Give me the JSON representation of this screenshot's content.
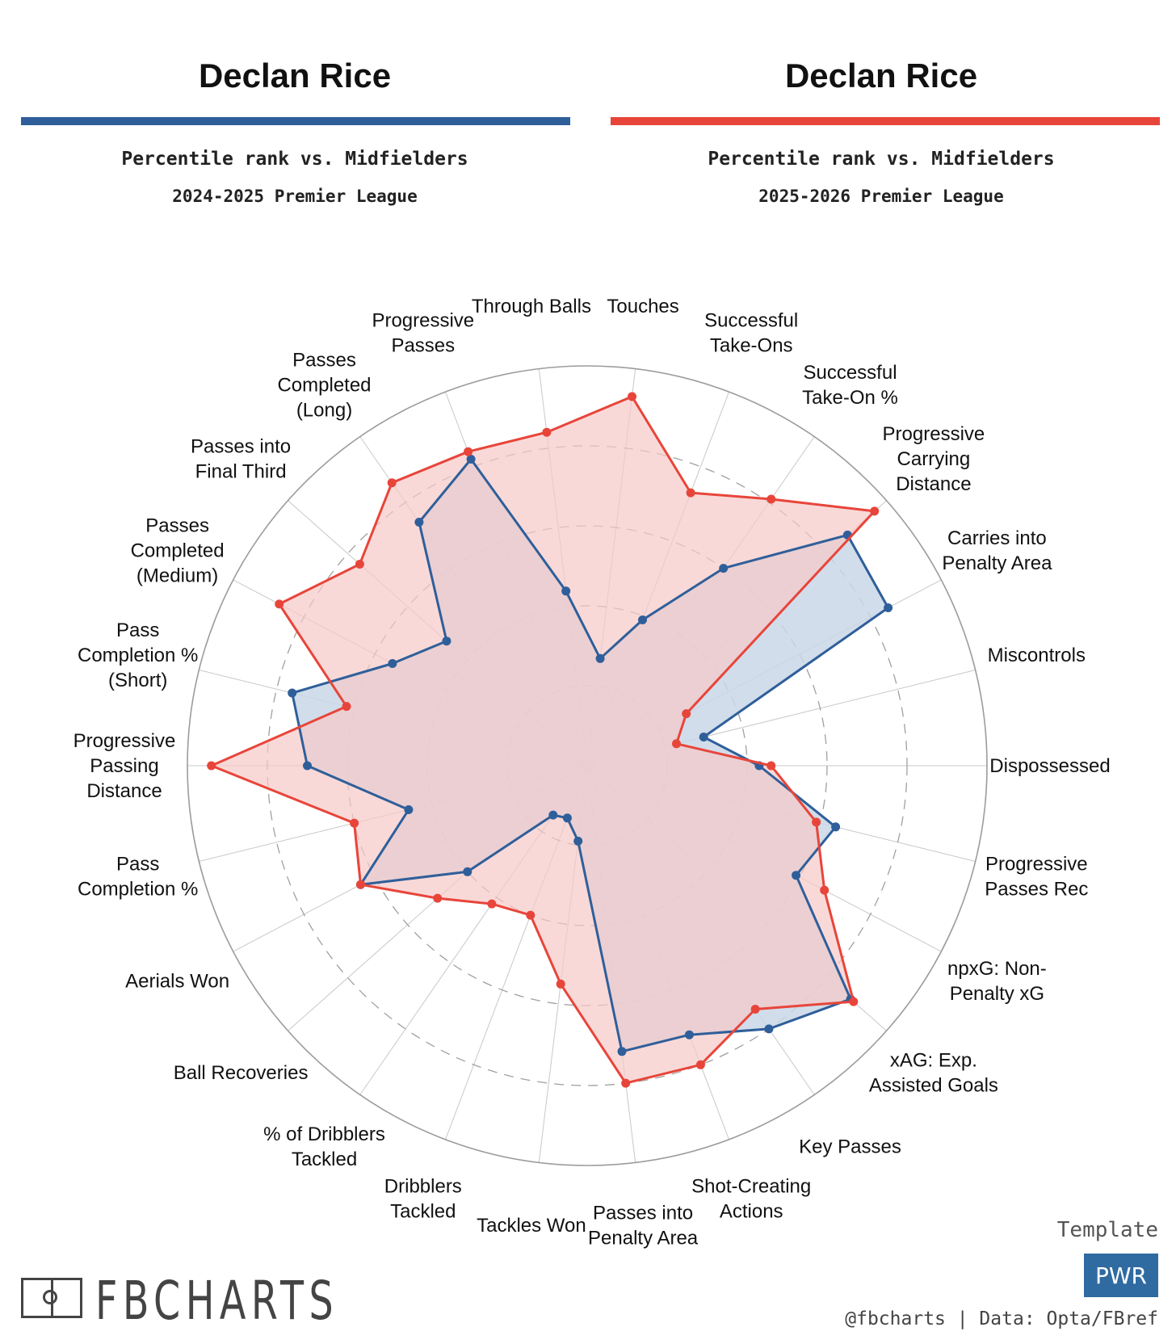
{
  "left_panel": {
    "player": "Declan Rice",
    "subtitle": "Percentile rank vs. Midfielders",
    "season": "2024-2025 Premier League",
    "color": "#2f5f9a"
  },
  "right_panel": {
    "player": "Declan Rice",
    "subtitle": "Percentile rank vs. Midfielders",
    "season": "2025-2026 Premier League",
    "color": "#e8453a"
  },
  "chart_data": {
    "type": "radar",
    "scale": "percentile",
    "range": [
      0,
      100
    ],
    "categories": [
      "Touches",
      "Successful Take-Ons",
      "Successful Take-On %",
      "Progressive Carrying Distance",
      "Carries into Penalty Area",
      "Miscontrols",
      "Dispossessed",
      "Progressive Passes Rec",
      "npxG: Non-Penalty xG",
      "xAG: Exp. Assisted Goals",
      "Key Passes",
      "Shot-Creating Actions",
      "Passes into Penalty Area",
      "Tackles Won",
      "Dribblers Tackled",
      "% of Dribblers Tackled",
      "Ball Recoveries",
      "Aerials Won",
      "Pass Completion %",
      "Progressive Passing Distance",
      "Pass Completion % (Short)",
      "Passes Completed (Medium)",
      "Passes into Final Third",
      "Passes Completed (Long)",
      "Progressive Passes",
      "Through Balls"
    ],
    "series": [
      {
        "name": "2024-2025 Premier League",
        "color": "#2f5f9a",
        "fill": "#c9d7e6",
        "values": [
          27,
          39,
          60,
          87,
          85,
          30,
          43,
          64,
          59,
          88,
          80,
          72,
          72,
          19,
          14,
          15,
          40,
          64,
          46,
          70,
          76,
          55,
          47,
          74,
          82,
          44
        ]
      },
      {
        "name": "2025-2026 Premier League",
        "color": "#e8453a",
        "fill": "#f7c9c8",
        "values": [
          93,
          73,
          81,
          96,
          28,
          23,
          46,
          59,
          67,
          89,
          74,
          80,
          80,
          55,
          40,
          42,
          50,
          64,
          60,
          94,
          62,
          87,
          76,
          86,
          84,
          84
        ]
      }
    ],
    "label_lines": [
      [
        "Touches"
      ],
      [
        "Successful",
        "Take-Ons"
      ],
      [
        "Successful",
        "Take-On %"
      ],
      [
        "Progressive",
        "Carrying",
        "Distance"
      ],
      [
        "Carries into",
        "Penalty Area"
      ],
      [
        "Miscontrols"
      ],
      [
        "Dispossessed"
      ],
      [
        "Progressive",
        "Passes Rec"
      ],
      [
        "npxG: Non-",
        "Penalty xG"
      ],
      [
        "xAG: Exp.",
        "Assisted Goals"
      ],
      [
        "Key Passes"
      ],
      [
        "Shot-Creating",
        "Actions"
      ],
      [
        "Passes into",
        "Penalty Area"
      ],
      [
        "Tackles Won"
      ],
      [
        "Dribblers",
        "Tackled"
      ],
      [
        "% of Dribblers",
        "Tackled"
      ],
      [
        "Ball Recoveries"
      ],
      [
        "Aerials Won"
      ],
      [
        "Pass",
        "Completion %"
      ],
      [
        "Progressive",
        "Passing",
        "Distance"
      ],
      [
        "Pass",
        "Completion %",
        "(Short)"
      ],
      [
        "Passes",
        "Completed",
        "(Medium)"
      ],
      [
        "Passes into",
        "Final Third"
      ],
      [
        "Passes",
        "Completed",
        "(Long)"
      ],
      [
        "Progressive",
        "Passes"
      ],
      [
        "Through Balls"
      ]
    ]
  },
  "footer": {
    "brand": "FBCHARTS",
    "template_label": "Template",
    "template_badge": "PWR",
    "credit": "@fbcharts | Data: Opta/FBref"
  }
}
